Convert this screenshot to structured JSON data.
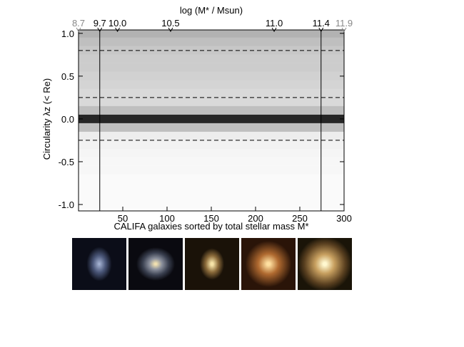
{
  "chart_data": {
    "type": "density",
    "xlabel": "CALIFA galaxies sorted by total stellar mass M*",
    "ylabel": "Circularity λz (< Re)",
    "x2label": "log (M* / Msun)",
    "xlim": [
      0,
      300
    ],
    "ylim": [
      -1.075,
      1.04
    ],
    "xticks": [
      50,
      100,
      150,
      200,
      250,
      300
    ],
    "yticks": [
      {
        "value": 1,
        "label": "1.0"
      },
      0.5,
      {
        "value": 0,
        "label": "0.0"
      },
      -0.5,
      {
        "value": -1,
        "label": "-1.0"
      }
    ],
    "x2ticks": [
      8.7,
      9.7,
      {
        "value": 10,
        "label": "10.0"
      },
      10.5,
      {
        "value": 11,
        "label": "11.0"
      },
      11.4,
      11.9
    ],
    "x2tick_positions": [
      0,
      24,
      44,
      104,
      221,
      274,
      300
    ],
    "x2tick_colors": [
      "#888888",
      "#000000",
      "#000000",
      "#000000",
      "#000000",
      "#000000",
      "#888888"
    ],
    "vlines": [
      24,
      274
    ],
    "hlines": [
      0.8,
      0.25,
      -0.25
    ],
    "density": {
      "y": [
        -1,
        -0.9,
        -0.8,
        -0.7,
        -0.6,
        -0.5,
        -0.4,
        -0.3,
        -0.2,
        -0.1,
        0,
        0.1,
        0.2,
        0.3,
        0.4,
        0.5,
        0.6,
        0.7,
        0.8,
        0.9,
        1
      ],
      "values": [
        0.02,
        0.02,
        0.02,
        0.02,
        0.03,
        0.03,
        0.04,
        0.05,
        0.07,
        0.25,
        0.85,
        0.25,
        0.15,
        0.15,
        0.17,
        0.18,
        0.2,
        0.2,
        0.22,
        0.25,
        0.3
      ]
    }
  }
}
